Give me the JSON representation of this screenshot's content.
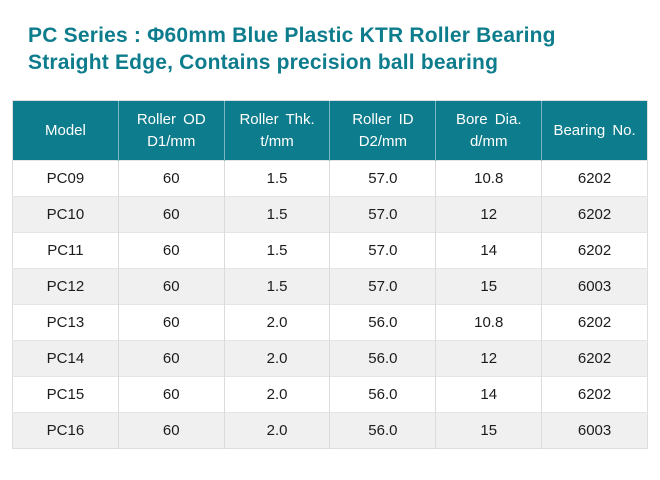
{
  "colors": {
    "accent_teal": "#0d7c8c",
    "row_alt": "#f0f0f0",
    "body_text": "#1c1c1c",
    "header_text": "#ffffff"
  },
  "title": {
    "line1": "PC Series : Φ60mm Blue Plastic KTR Roller Bearing",
    "line2": "Straight Edge, Contains precision ball bearing"
  },
  "table": {
    "columns": [
      {
        "line1": "Model",
        "line2": ""
      },
      {
        "line1": "Roller OD",
        "line2": "D1/mm"
      },
      {
        "line1": "Roller Thk.",
        "line2": "t/mm"
      },
      {
        "line1": "Roller ID",
        "line2": "D2/mm"
      },
      {
        "line1": "Bore Dia.",
        "line2": "d/mm"
      },
      {
        "line1": "Bearing No.",
        "line2": ""
      }
    ],
    "rows": [
      [
        "PC09",
        "60",
        "1.5",
        "57.0",
        "10.8",
        "6202"
      ],
      [
        "PC10",
        "60",
        "1.5",
        "57.0",
        "12",
        "6202"
      ],
      [
        "PC11",
        "60",
        "1.5",
        "57.0",
        "14",
        "6202"
      ],
      [
        "PC12",
        "60",
        "1.5",
        "57.0",
        "15",
        "6003"
      ],
      [
        "PC13",
        "60",
        "2.0",
        "56.0",
        "10.8",
        "6202"
      ],
      [
        "PC14",
        "60",
        "2.0",
        "56.0",
        "12",
        "6202"
      ],
      [
        "PC15",
        "60",
        "2.0",
        "56.0",
        "14",
        "6202"
      ],
      [
        "PC16",
        "60",
        "2.0",
        "56.0",
        "15",
        "6003"
      ]
    ]
  }
}
